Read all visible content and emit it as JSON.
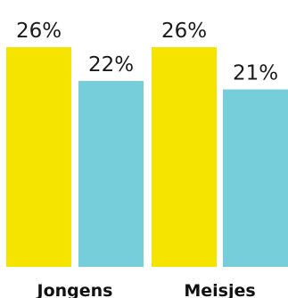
{
  "chart_data": {
    "type": "bar",
    "categories": [
      "Jongens",
      "Meisjes"
    ],
    "series": [
      {
        "values": [
          26,
          26
        ],
        "labels": [
          "26%",
          "26%"
        ],
        "color": "#f4e400"
      },
      {
        "values": [
          22,
          21
        ],
        "labels": [
          "22%",
          "21%"
        ],
        "color": "#76ceda"
      }
    ],
    "unit": "%"
  }
}
